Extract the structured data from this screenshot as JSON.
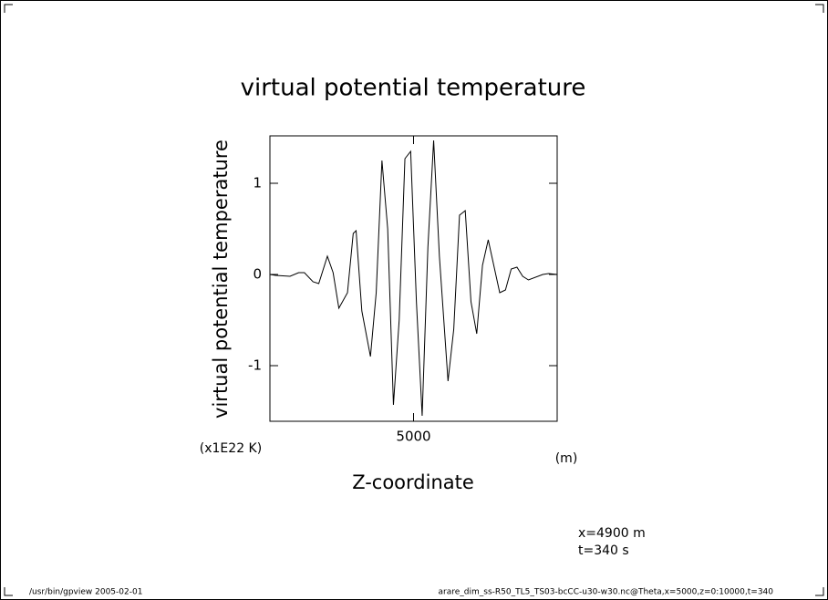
{
  "chart_data": {
    "type": "line",
    "title": "virtual potential temperature",
    "y_label": "virtual potential temperature",
    "x_label": "Z-coordinate",
    "y_units": "(x1E22 K)",
    "x_units": "(m)",
    "annotations": [
      "x=4900 m",
      "t=340 s"
    ],
    "footer_left": "/usr/bin/gpview  2005-02-01",
    "footer_right": "arare_dim_ss-R50_TL5_TS03-bcCC-u30-w30.nc@Theta,x=5000,z=0:10000,t=340",
    "color": "#000000",
    "x": [
      0,
      200,
      700,
      1000,
      1200,
      1500,
      1700,
      2000,
      2200,
      2400,
      2700,
      2900,
      3000,
      3200,
      3500,
      3700,
      3900,
      4100,
      4300,
      4500,
      4700,
      4900,
      5100,
      5300,
      5500,
      5700,
      5900,
      6200,
      6400,
      6600,
      6800,
      7000,
      7200,
      7400,
      7600,
      8000,
      8200,
      8400,
      8600,
      8800,
      9000,
      9500,
      9700,
      10000
    ],
    "values": [
      0,
      -0.01,
      -0.02,
      0.02,
      0.02,
      -0.08,
      -0.1,
      0.2,
      0.02,
      -0.37,
      -0.2,
      0.45,
      0.48,
      -0.4,
      -0.9,
      -0.2,
      1.25,
      0.5,
      -1.43,
      -0.5,
      1.27,
      1.35,
      -0.3,
      -1.55,
      0.3,
      1.47,
      0.2,
      -1.17,
      -0.6,
      0.65,
      0.7,
      -0.3,
      -0.65,
      0.1,
      0.38,
      -0.2,
      -0.17,
      0.06,
      0.08,
      -0.02,
      -0.06,
      0,
      0.01,
      0
    ],
    "xlim": [
      0,
      10000
    ],
    "xticks": [
      5000
    ],
    "ylim": [
      -1.61,
      1.52
    ],
    "yticks": [
      -1,
      0,
      1
    ]
  }
}
